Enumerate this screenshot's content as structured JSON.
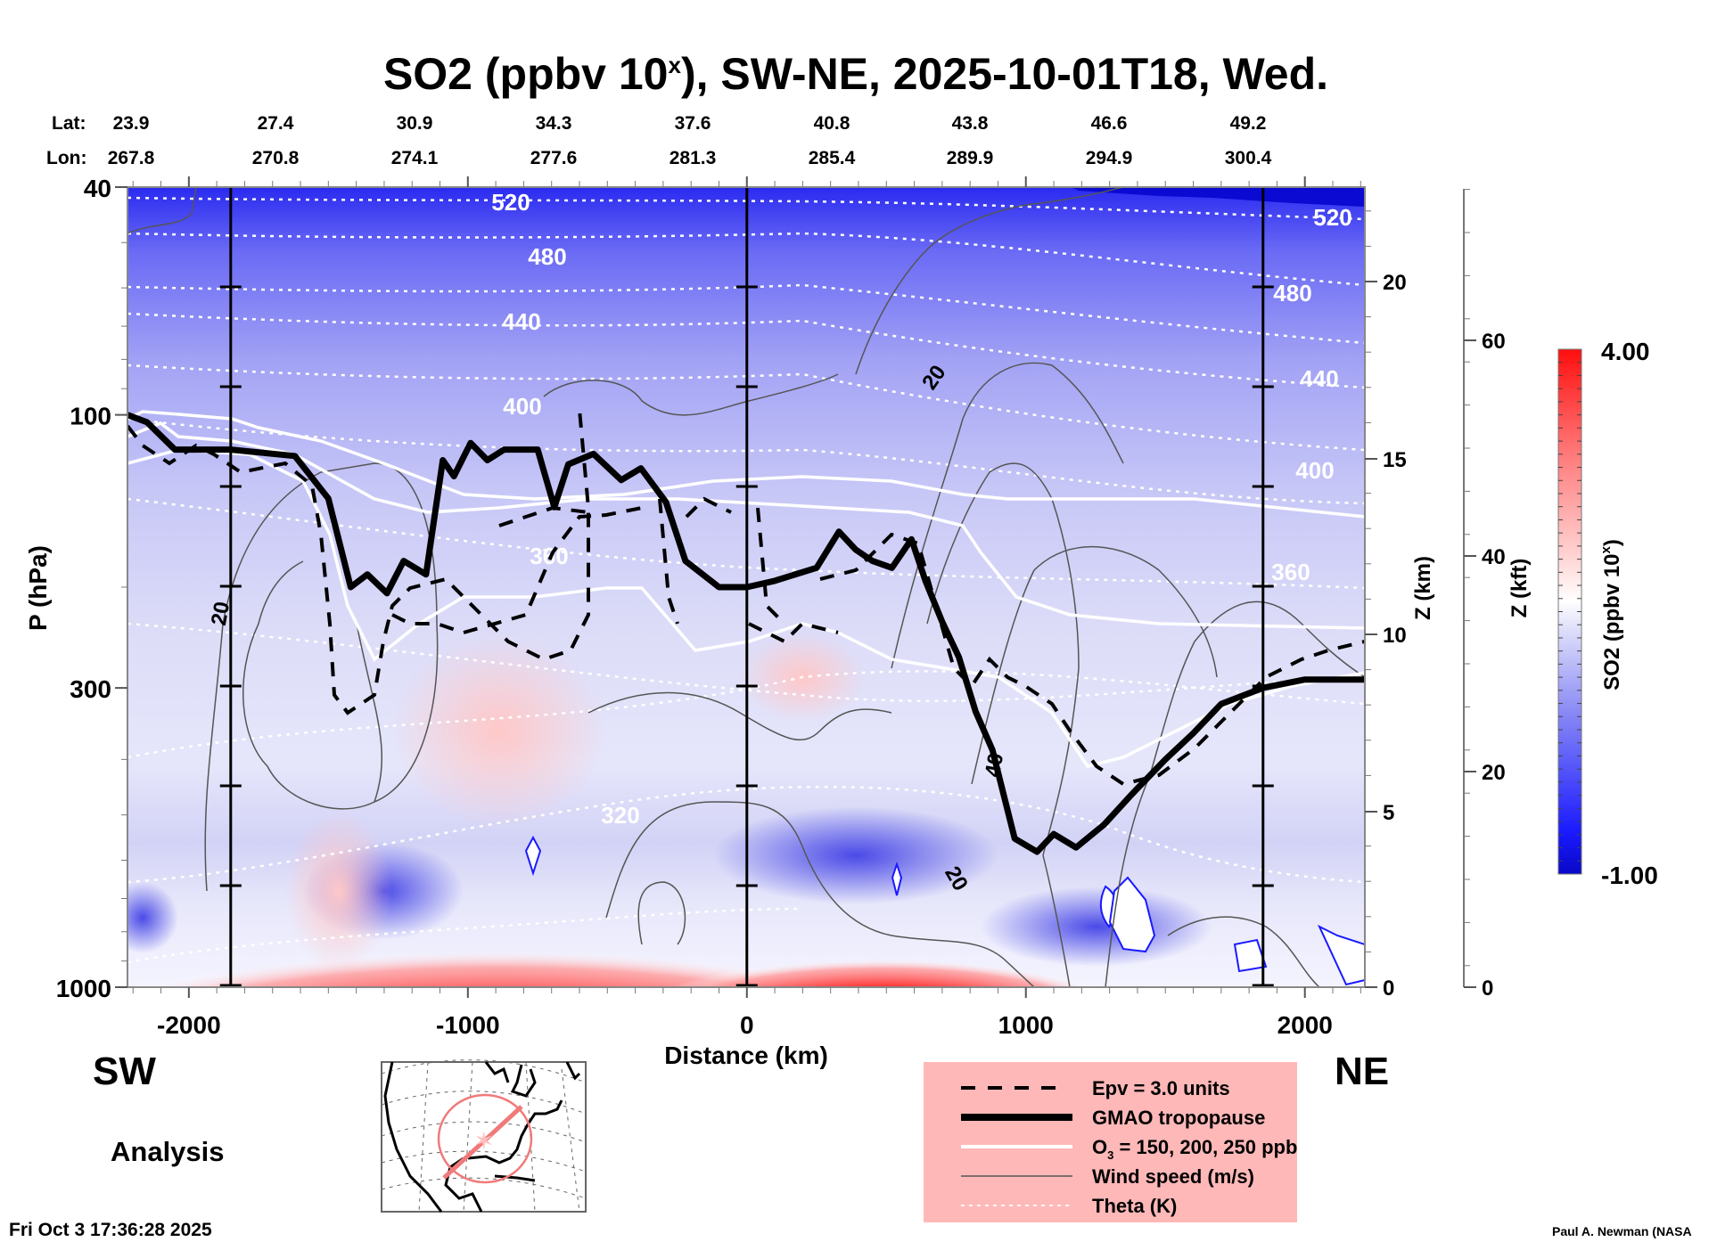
{
  "chart_data": {
    "type": "heatmap",
    "title": "SO2 (ppbv 10",
    "title_superscript": "x",
    "title_suffix": "), SW-NE, 2025-10-01T18, Wed.",
    "xlabel": "Distance (km)",
    "ylabel": "P (hPa)",
    "xlim": [
      -2220,
      2215
    ],
    "ylim_hpa": [
      1000,
      40
    ],
    "y_scale": "log",
    "x_ticks": [
      -2000,
      -1000,
      0,
      1000,
      2000
    ],
    "x_tick_labels": [
      "-2000",
      "-1000",
      "0",
      "1000",
      "2000"
    ],
    "y_ticks": [
      40,
      100,
      300,
      1000
    ],
    "y_tick_labels": [
      "40",
      "100",
      "300",
      "1000"
    ],
    "right_axis_km": {
      "label": "Z (km)",
      "ticks": [
        0,
        5,
        10,
        15,
        20
      ],
      "tick_labels": [
        "0",
        "5",
        "10",
        "15",
        "20"
      ]
    },
    "right_axis_kft": {
      "label": "Z (kft)",
      "ticks": [
        0,
        20,
        40,
        60
      ],
      "tick_labels": [
        "0",
        "20",
        "40",
        "60"
      ]
    },
    "lat_label": "Lat:",
    "lon_label": "Lon:",
    "lat_values": [
      "23.9",
      "27.4",
      "30.9",
      "34.3",
      "37.6",
      "40.8",
      "43.8",
      "46.6",
      "49.2"
    ],
    "lon_values": [
      "267.8",
      "270.8",
      "274.1",
      "277.6",
      "281.3",
      "285.4",
      "289.9",
      "294.9",
      "300.4"
    ],
    "vertical_marker_lines_km": [
      -1850,
      0,
      1850
    ],
    "colorbar": {
      "label": "SO2 (ppbv 10",
      "label_superscript": "x",
      "label_suffix": ")",
      "min": -1.0,
      "max": 4.0,
      "min_label": "-1.00",
      "max_label": "4.00",
      "colors": [
        "#0a0ad2",
        "#ffffff",
        "#ff0d0d"
      ]
    },
    "theta_contours_K": [
      {
        "value": 520,
        "label": "520"
      },
      {
        "value": 480,
        "label": "480"
      },
      {
        "value": 440,
        "label": "440"
      },
      {
        "value": 400,
        "label": "400"
      },
      {
        "value": 360,
        "label": "360"
      },
      {
        "value": 320,
        "label": "320"
      }
    ],
    "wind_contour_labels": [
      "20",
      "20",
      "40",
      "20"
    ],
    "tropopause_hpa": {
      "x_km": [
        -2220,
        -2150,
        -2050,
        -1850,
        -1620,
        -1500,
        -1420,
        -1360,
        -1290,
        -1230,
        -1150,
        -1090,
        -1050,
        -990,
        -930,
        -870,
        -750,
        -690,
        -640,
        -550,
        -450,
        -380,
        -290,
        -220,
        -100,
        0,
        100,
        250,
        330,
        390,
        450,
        520,
        590,
        640,
        700,
        760,
        820,
        880,
        960,
        1040,
        1100,
        1180,
        1280,
        1380,
        1500,
        1600,
        1700,
        1850,
        2000,
        2215
      ],
      "p_hpa": [
        100,
        103,
        115,
        115,
        118,
        140,
        200,
        190,
        205,
        180,
        190,
        120,
        128,
        112,
        120,
        115,
        115,
        145,
        122,
        117,
        130,
        124,
        142,
        180,
        200,
        200,
        195,
        185,
        160,
        172,
        180,
        185,
        165,
        195,
        230,
        265,
        330,
        385,
        550,
        580,
        540,
        570,
        520,
        460,
        400,
        360,
        320,
        300,
        290,
        290
      ]
    },
    "legend": {
      "placement": "bottom-center",
      "background": "#ffb8b8",
      "entries": [
        {
          "label": "Epv = 3.0 units",
          "style": "dashed-black"
        },
        {
          "label": "GMAO tropopause",
          "style": "thick-black"
        },
        {
          "label_main": "O",
          "label_sub": "3",
          "label_rest": " = 150, 200, 250 ppb",
          "style": "white"
        },
        {
          "label": "Wind speed (m/s)",
          "style": "thin-gray"
        },
        {
          "label": "Theta (K)",
          "style": "dotted-white"
        }
      ]
    }
  },
  "labels": {
    "sw": "SW",
    "ne": "NE",
    "analysis": "Analysis",
    "timestamp": "Fri Oct  3 17:36:28 2025",
    "credit": "Paul A. Newman (NASA"
  }
}
